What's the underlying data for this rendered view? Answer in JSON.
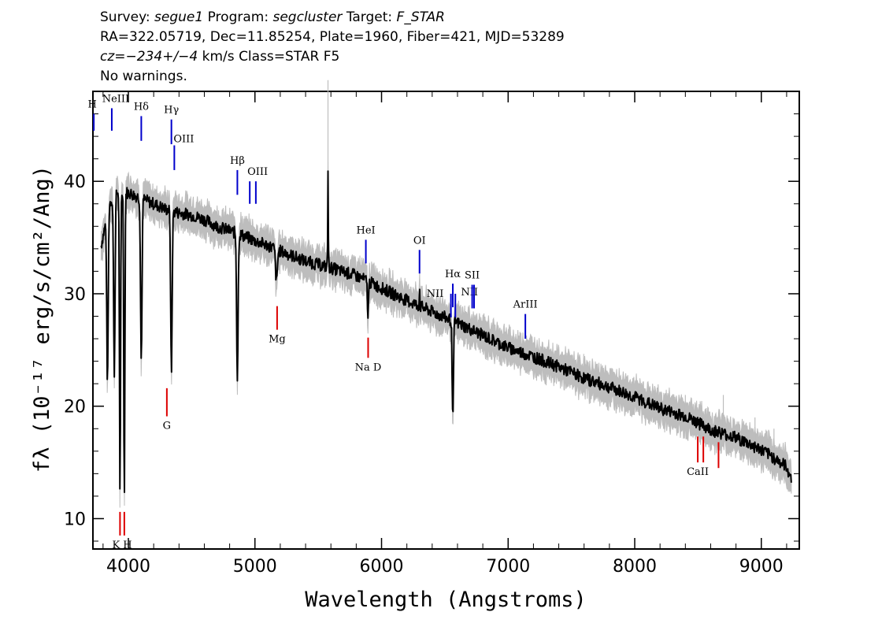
{
  "header": {
    "line1": {
      "survey_label": "Survey:",
      "survey": "segue1",
      "program_label": "Program:",
      "program": "segcluster",
      "target_label": "Target:",
      "target": "F_STAR"
    },
    "line2": "RA=322.05719, Dec=11.85254, Plate=1960, Fiber=421, MJD=53289",
    "line3": {
      "cz_label": "cz=",
      "cz": "−234+/−4",
      "cz_unit": "km/s",
      "class": "Class=STAR F5"
    },
    "line4": "No warnings."
  },
  "chart_data": {
    "type": "line",
    "xlabel": "Wavelength (Angstroms)",
    "ylabel": "fλ (10⁻¹⁷ erg/s/cm²/Ang)",
    "xlim": [
      3720,
      9300
    ],
    "ylim": [
      7.3,
      48
    ],
    "x_ticks": [
      4000,
      5000,
      6000,
      7000,
      8000,
      9000
    ],
    "x_tick_labels": [
      "4000",
      "5000",
      "6000",
      "7000",
      "8000",
      "9000"
    ],
    "y_ticks": [
      10,
      20,
      30,
      40
    ],
    "y_tick_labels": [
      "10",
      "20",
      "30",
      "40"
    ],
    "grid": false,
    "series": [
      {
        "role": "flux",
        "color": "#000000",
        "continuum": [
          [
            3780,
            34
          ],
          [
            3850,
            38
          ],
          [
            3900,
            39
          ],
          [
            4000,
            39
          ],
          [
            4100,
            38.5
          ],
          [
            4200,
            38
          ],
          [
            4300,
            37.5
          ],
          [
            4400,
            37.2
          ],
          [
            4500,
            37
          ],
          [
            4600,
            36.6
          ],
          [
            4700,
            36
          ],
          [
            4800,
            35.6
          ],
          [
            4900,
            35.2
          ],
          [
            5000,
            34.7
          ],
          [
            5100,
            34.3
          ],
          [
            5200,
            33.8
          ],
          [
            5400,
            32.9
          ],
          [
            5600,
            32.3
          ],
          [
            5800,
            31.6
          ],
          [
            6000,
            30.5
          ],
          [
            6200,
            29.4
          ],
          [
            6400,
            28.4
          ],
          [
            6600,
            27.4
          ],
          [
            6800,
            26.3
          ],
          [
            7000,
            25.2
          ],
          [
            7200,
            24.4
          ],
          [
            7400,
            23.5
          ],
          [
            7600,
            22.5
          ],
          [
            7800,
            21.7
          ],
          [
            8000,
            20.8
          ],
          [
            8200,
            19.8
          ],
          [
            8400,
            19.1
          ],
          [
            8600,
            17.9
          ],
          [
            8800,
            17.2
          ],
          [
            9000,
            16.1
          ],
          [
            9100,
            15.4
          ],
          [
            9200,
            14.6
          ],
          [
            9240,
            13.5
          ]
        ],
        "absorption": [
          [
            3835,
            22,
            8
          ],
          [
            3889,
            23,
            8
          ],
          [
            3934,
            11.5,
            6
          ],
          [
            3968,
            11.5,
            6
          ],
          [
            4102,
            24,
            8
          ],
          [
            4340,
            23,
            8
          ],
          [
            4861,
            22.5,
            8
          ],
          [
            5170,
            31,
            10
          ],
          [
            5893,
            28,
            6
          ],
          [
            6563,
            18.5,
            7
          ],
          [
            8498,
            19,
            5
          ],
          [
            8542,
            18.5,
            5
          ],
          [
            8662,
            18,
            5
          ]
        ],
        "emission_spikes": [
          [
            5577,
            41
          ],
          [
            6300,
            30.5
          ]
        ]
      },
      {
        "role": "error",
        "color": "#bdbdbd",
        "spikes": [
          [
            5577,
            49
          ],
          [
            8400,
            21
          ],
          [
            8700,
            21
          ],
          [
            8950,
            19
          ],
          [
            9100,
            18
          ],
          [
            9230,
            15
          ]
        ]
      }
    ],
    "emission_lines": [
      {
        "label": "H",
        "x": 3727,
        "y_top": 46,
        "y_bot": 44.5
      },
      {
        "label": "NeIII",
        "x": 3869,
        "y_top": 46.5,
        "y_bot": 44.5
      },
      {
        "label": "Hδ",
        "x": 4102,
        "y_top": 45.8,
        "y_bot": 43.6
      },
      {
        "label": "Hγ",
        "x": 4340,
        "y_top": 45.5,
        "y_bot": 43.3
      },
      {
        "label": "OIII",
        "x": 4363,
        "y_top": 43.2,
        "y_bot": 41
      },
      {
        "label": "Hβ",
        "x": 4861,
        "y_top": 41,
        "y_bot": 38.8
      },
      {
        "label": "OIII",
        "x": 4959,
        "y_top": 40,
        "y_bot": 38
      },
      {
        "label": "OIII",
        "x": 5007,
        "y_top": 40,
        "y_bot": 38
      },
      {
        "label": "HeI",
        "x": 5876,
        "y_top": 34.8,
        "y_bot": 32.7
      },
      {
        "label": "OI",
        "x": 6300,
        "y_top": 33.9,
        "y_bot": 31.8
      },
      {
        "label": "NII",
        "x": 6548,
        "y_top": 30,
        "y_bot": 27.9
      },
      {
        "label": "Hα",
        "x": 6563,
        "y_top": 30.9,
        "y_bot": 28.8
      },
      {
        "label": "NII",
        "x": 6583,
        "y_top": 30,
        "y_bot": 27.9
      },
      {
        "label": "SII",
        "x": 6716,
        "y_top": 30.8,
        "y_bot": 28.7
      },
      {
        "label": "SII",
        "x": 6731,
        "y_top": 30.8,
        "y_bot": 28.7
      },
      {
        "label": "ArIII",
        "x": 7136,
        "y_top": 28.2,
        "y_bot": 26
      }
    ],
    "absorption_lines": [
      {
        "label": "K",
        "x": 3934,
        "y_top": 8.5,
        "y_bot": 10.6
      },
      {
        "label": "H",
        "x": 3968,
        "y_top": 8.5,
        "y_bot": 10.6
      },
      {
        "label": "G",
        "x": 4304,
        "y_top": 19.1,
        "y_bot": 21.6
      },
      {
        "label": "Mg",
        "x": 5175,
        "y_top": 26.8,
        "y_bot": 28.9
      },
      {
        "label": "Na D",
        "x": 5894,
        "y_top": 24.3,
        "y_bot": 26.1
      },
      {
        "label": "CaII",
        "x": 8498,
        "y_top": 17.3,
        "y_bot": 15
      },
      {
        "label": "CaII",
        "x": 8542,
        "y_top": 17.3,
        "y_bot": 15
      },
      {
        "label": "CaII",
        "x": 8662,
        "y_top": 16.8,
        "y_bot": 14.5
      }
    ],
    "emission_line_color": "#0000cc",
    "absorption_line_color": "#dd0000"
  }
}
